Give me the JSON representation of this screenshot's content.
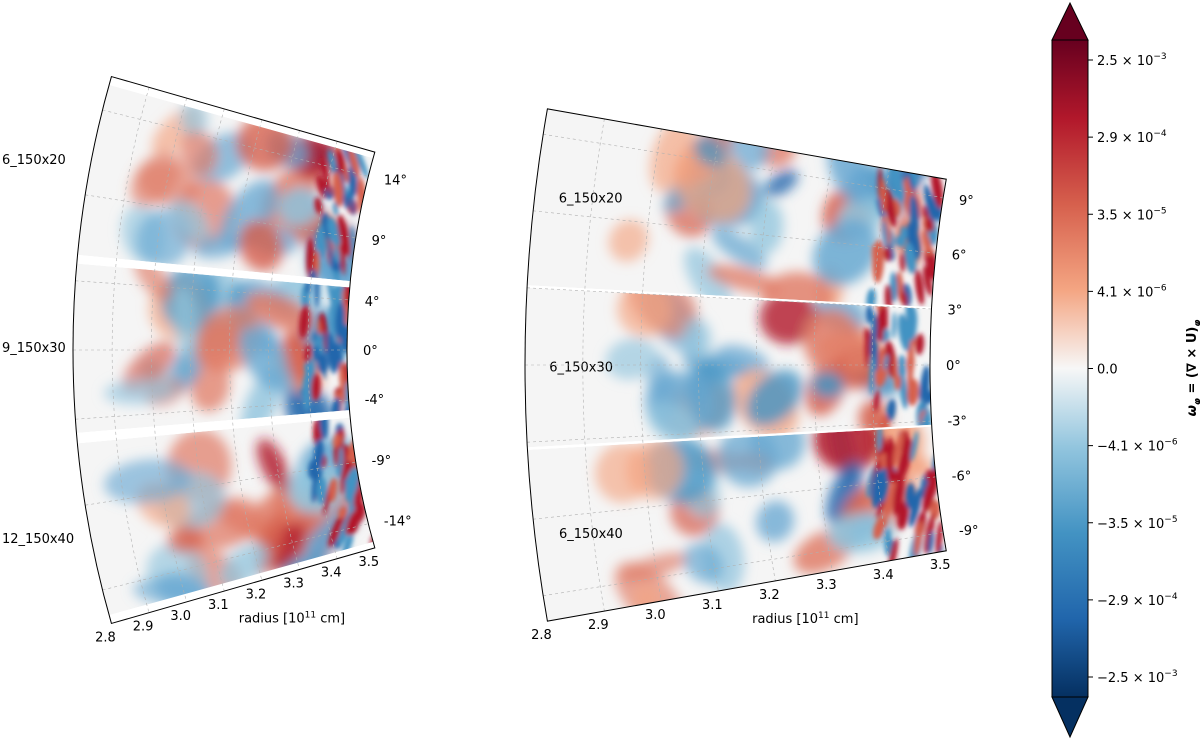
{
  "chart_data": [
    {
      "type": "heatmap",
      "panel": "left",
      "xlabel_main": "radius [10",
      "xlabel_sup": "11",
      "xlabel_tail": " cm]",
      "x_ticks": [
        "2.8",
        "2.9",
        "3.0",
        "3.1",
        "3.2",
        "3.3",
        "3.4",
        "3.5"
      ],
      "xlim": [
        2.8,
        3.5
      ],
      "theta_ticks": [
        "14°",
        "9°",
        "4°",
        "0°",
        "-4°",
        "-9°",
        "-14°"
      ],
      "theta_range_deg": [
        -16,
        16
      ],
      "strips": [
        {
          "label": "6_150x20",
          "theta_range_deg": [
            5.5,
            15.5
          ]
        },
        {
          "label": "9_150x30",
          "theta_range_deg": [
            -4.8,
            5.0
          ]
        },
        {
          "label": "12_150x40",
          "theta_range_deg": [
            -15.5,
            -5.4
          ]
        }
      ],
      "grid": true
    },
    {
      "type": "heatmap",
      "panel": "right",
      "xlabel_main": "radius [10",
      "xlabel_sup": "11",
      "xlabel_tail": " cm]",
      "x_ticks": [
        "2.8",
        "2.9",
        "3.0",
        "3.1",
        "3.2",
        "3.3",
        "3.4",
        "3.5"
      ],
      "xlim": [
        2.8,
        3.5
      ],
      "theta_ticks": [
        "9°",
        "6°",
        "3°",
        "0°",
        "-3°",
        "-6°",
        "-9°"
      ],
      "theta_range_deg": [
        -10,
        10
      ],
      "strips": [
        {
          "label": "6_150x20",
          "theta_range_deg": [
            3.1,
            10.0
          ]
        },
        {
          "label": "6_150x30",
          "theta_range_deg": [
            -3.2,
            3.0
          ]
        },
        {
          "label": "6_150x40",
          "theta_range_deg": [
            -10.0,
            -3.3
          ]
        }
      ],
      "grid": true
    }
  ],
  "colorbar": {
    "label": "ω_φ = (∇ × U)_φ",
    "label_parts": {
      "omega": "ω",
      "omega_sub": "φ",
      "eq": " = (∇ × ",
      "bold": "U",
      "close": ")",
      "close_sub": "φ"
    },
    "ticks": [
      "2.5 × 10^-3",
      "2.9 × 10^-4",
      "3.5 × 10^-5",
      "4.1 × 10^-6",
      "0.0",
      "−4.1 × 10^-6",
      "−3.5 × 10^-5",
      "−2.9 × 10^-4",
      "−2.5 × 10^-3"
    ],
    "tick_parts": [
      {
        "mant": "2.5 × 10",
        "exp": "−3"
      },
      {
        "mant": "2.9 × 10",
        "exp": "−4"
      },
      {
        "mant": "3.5 × 10",
        "exp": "−5"
      },
      {
        "mant": "4.1 × 10",
        "exp": "−6"
      },
      {
        "mant": "0.0",
        "exp": ""
      },
      {
        "mant": "−4.1 × 10",
        "exp": "−6"
      },
      {
        "mant": "−3.5 × 10",
        "exp": "−5"
      },
      {
        "mant": "−2.9 × 10",
        "exp": "−4"
      },
      {
        "mant": "−2.5 × 10",
        "exp": "−3"
      }
    ],
    "extend": "both",
    "colormap": "RdBu_r",
    "colors": {
      "max": "#67001f",
      "high": "#d6604d",
      "mid": "#f7f7f7",
      "low": "#4393c3",
      "min": "#053061"
    }
  }
}
